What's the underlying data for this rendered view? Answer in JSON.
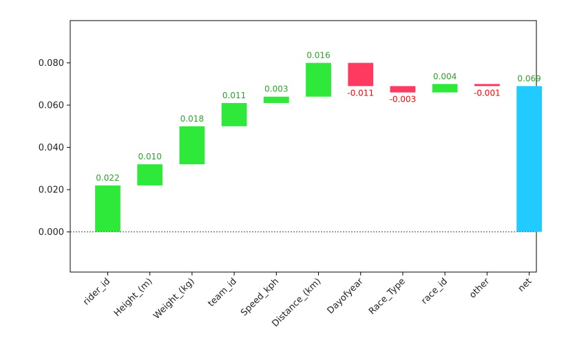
{
  "chart_data": {
    "type": "bar",
    "subtype": "waterfall",
    "title": "",
    "xlabel": "",
    "ylabel": "",
    "ylim": [
      -0.019,
      0.1
    ],
    "yticks": [
      0.0,
      0.02,
      0.04,
      0.06,
      0.08
    ],
    "ytick_labels": [
      "0.000",
      "0.020",
      "0.040",
      "0.060",
      "0.080"
    ],
    "baseline_line": "dotted",
    "grid": false,
    "colors": {
      "positive": "#2ee83a",
      "negative": "#ff3a61",
      "net": "#21cbff",
      "positive_label": "#2ca02c",
      "negative_label": "#ff0000"
    },
    "categories": [
      "rider_id",
      "Height_(m)",
      "Weight_(kg)",
      "team_id",
      "Speed_kph",
      "Distance_(km)",
      "Dayofyear",
      "Race_Type",
      "race_id",
      "other",
      "net"
    ],
    "values": [
      0.022,
      0.01,
      0.018,
      0.011,
      0.003,
      0.016,
      -0.011,
      -0.003,
      0.004,
      -0.001,
      0.069
    ],
    "value_labels": [
      "0.022",
      "0.010",
      "0.018",
      "0.011",
      "0.003",
      "0.016",
      "-0.011",
      "-0.003",
      "0.004",
      "-0.001",
      "0.069"
    ],
    "bar_kind": [
      "delta",
      "delta",
      "delta",
      "delta",
      "delta",
      "delta",
      "delta",
      "delta",
      "delta",
      "delta",
      "total"
    ]
  }
}
